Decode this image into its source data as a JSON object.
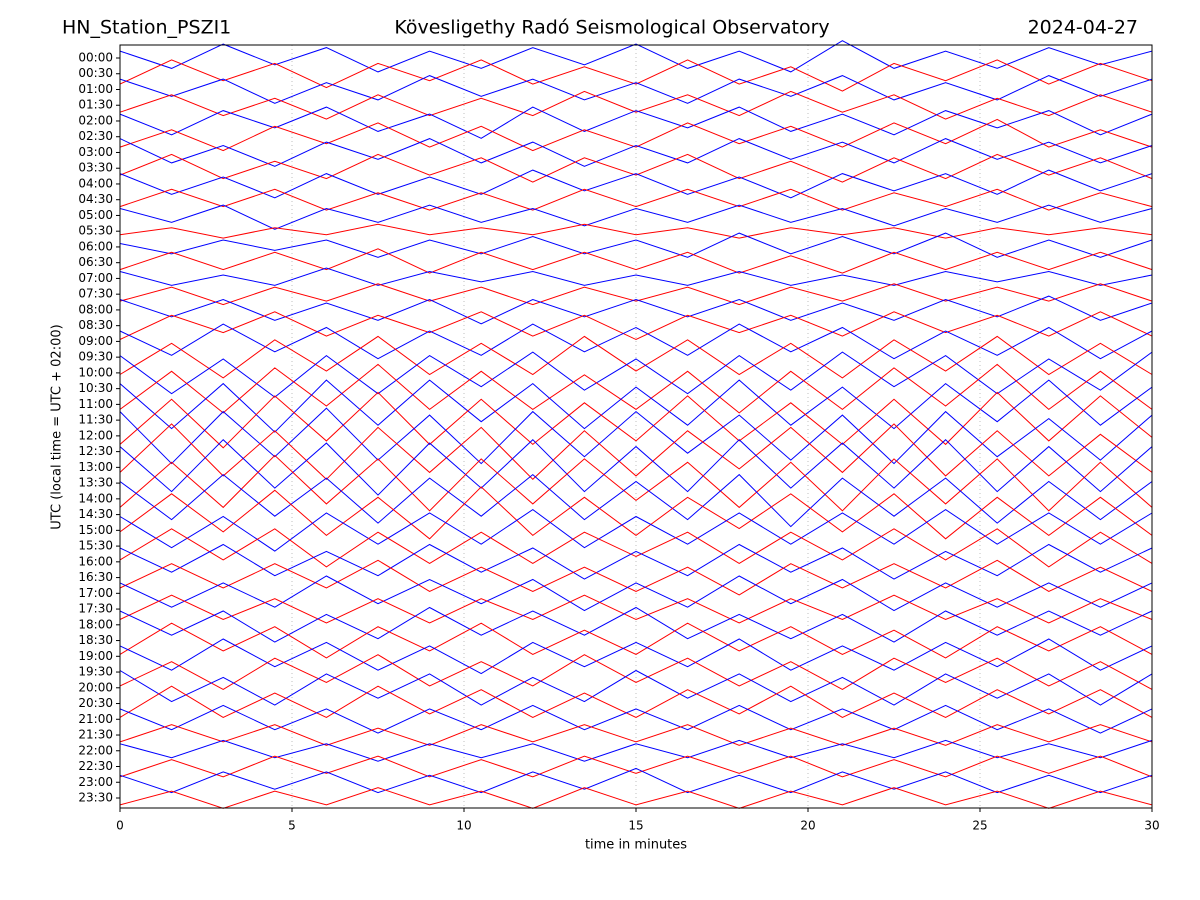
{
  "chart_data": {
    "type": "helicorder",
    "title_left": "HN_Station_PSZI1",
    "title": "Kövesligethy Radó Seismological Observatory",
    "title_right": "2024-04-27",
    "ylabel": "UTC (local time = UTC + 02:00)",
    "xlabel": "time in minutes",
    "xlim": [
      0,
      30
    ],
    "xticks": [
      0,
      5,
      10,
      15,
      20,
      25,
      30
    ],
    "grid": true,
    "trace_x": [
      0,
      1.5,
      3,
      4.5,
      6,
      7.5,
      9,
      10.5,
      12,
      13.5,
      15,
      16.5,
      18,
      19.5,
      21,
      22.5,
      24,
      25.5,
      27,
      28.5,
      30
    ],
    "series": [
      {
        "name": "00:00",
        "color": "#0000ff",
        "values": [
          2,
          -3,
          4,
          -2,
          3,
          -4,
          2,
          -3,
          3,
          -2,
          4,
          -3,
          2,
          -4,
          5,
          -3,
          2,
          -3,
          3,
          -2,
          2
        ]
      },
      {
        "name": "00:30",
        "color": "#ff0000",
        "values": [
          -3,
          4,
          -2,
          3,
          -4,
          3,
          -2,
          4,
          -3,
          2,
          -3,
          4,
          -3,
          2,
          -5,
          3,
          -2,
          4,
          -3,
          3,
          -2
        ]
      },
      {
        "name": "01:00",
        "color": "#0000ff",
        "values": [
          3,
          -2,
          3,
          -4,
          2,
          -3,
          4,
          -2,
          3,
          -3,
          2,
          -4,
          3,
          -2,
          4,
          -3,
          2,
          -3,
          4,
          -2,
          3
        ]
      },
      {
        "name": "01:30",
        "color": "#ff0000",
        "values": [
          -2,
          3,
          -3,
          2,
          -4,
          3,
          -3,
          2,
          -3,
          4,
          -2,
          3,
          -3,
          4,
          -2,
          3,
          -4,
          2,
          -3,
          3,
          -2
        ]
      },
      {
        "name": "02:00",
        "color": "#0000ff",
        "values": [
          2,
          -4,
          3,
          -2,
          4,
          -3,
          2,
          -5,
          4,
          -3,
          3,
          -2,
          4,
          -3,
          2,
          -4,
          3,
          -2,
          3,
          -4,
          2
        ]
      },
      {
        "name": "02:30",
        "color": "#ff0000",
        "values": [
          -3,
          2,
          -4,
          3,
          -2,
          4,
          -3,
          3,
          -4,
          2,
          -3,
          4,
          -2,
          3,
          -3,
          4,
          -2,
          5,
          -3,
          2,
          -3
        ]
      },
      {
        "name": "03:00",
        "color": "#0000ff",
        "values": [
          4,
          -3,
          2,
          -4,
          3,
          -2,
          4,
          -3,
          3,
          -4,
          2,
          -3,
          4,
          -2,
          3,
          -3,
          4,
          -2,
          3,
          -3,
          2
        ]
      },
      {
        "name": "03:30",
        "color": "#ff0000",
        "values": [
          -2,
          4,
          -3,
          2,
          -3,
          4,
          -2,
          3,
          -4,
          3,
          -2,
          4,
          -3,
          2,
          -4,
          3,
          -3,
          4,
          -2,
          3,
          -3
        ]
      },
      {
        "name": "04:00",
        "color": "#0000ff",
        "values": [
          3,
          -3,
          2,
          -4,
          3,
          -3,
          2,
          -3,
          4,
          -2,
          3,
          -3,
          2,
          -4,
          3,
          -2,
          3,
          -3,
          4,
          -2,
          3
        ]
      },
      {
        "name": "04:30",
        "color": "#ff0000",
        "values": [
          -2,
          3,
          -2,
          3,
          -3,
          2,
          -3,
          2,
          -3,
          3,
          -2,
          3,
          -2,
          3,
          -3,
          2,
          -2,
          3,
          -3,
          2,
          -2
        ]
      },
      {
        "name": "05:00",
        "color": "#0000ff",
        "values": [
          2,
          -2,
          3,
          -4,
          2,
          -2,
          3,
          -2,
          2,
          -3,
          2,
          -2,
          3,
          -2,
          2,
          -3,
          2,
          -2,
          3,
          -2,
          2
        ]
      },
      {
        "name": "05:30",
        "color": "#ff0000",
        "values": [
          -1,
          1,
          -2,
          1,
          -1,
          2,
          -1,
          1,
          -1,
          2,
          -1,
          1,
          -2,
          1,
          -1,
          1,
          -2,
          1,
          -1,
          1,
          -1
        ]
      },
      {
        "name": "06:00",
        "color": "#0000ff",
        "values": [
          1,
          -2,
          2,
          -1,
          2,
          -3,
          2,
          -2,
          3,
          -2,
          2,
          -3,
          4,
          -2,
          3,
          -2,
          4,
          -3,
          2,
          -3,
          2
        ]
      },
      {
        "name": "06:30",
        "color": "#ff0000",
        "values": [
          -2,
          3,
          -2,
          3,
          -2,
          4,
          -3,
          3,
          -2,
          3,
          -2,
          3,
          -3,
          2,
          -3,
          3,
          -2,
          3,
          -2,
          3,
          -2
        ]
      },
      {
        "name": "07:00",
        "color": "#0000ff",
        "values": [
          2,
          -2,
          1,
          -2,
          3,
          -2,
          2,
          -1,
          2,
          -2,
          1,
          -2,
          2,
          -2,
          1,
          -2,
          2,
          -1,
          2,
          -2,
          1
        ]
      },
      {
        "name": "07:30",
        "color": "#ff0000",
        "values": [
          -2,
          2,
          -3,
          2,
          -2,
          3,
          -2,
          2,
          -3,
          2,
          -2,
          2,
          -3,
          2,
          -2,
          3,
          -2,
          2,
          -2,
          3,
          -2
        ]
      },
      {
        "name": "08:00",
        "color": "#0000ff",
        "values": [
          3,
          -2,
          3,
          -3,
          2,
          -3,
          3,
          -4,
          3,
          -2,
          3,
          -2,
          3,
          -3,
          2,
          -3,
          3,
          -2,
          4,
          -3,
          2
        ]
      },
      {
        "name": "08:30",
        "color": "#ff0000",
        "values": [
          -4,
          3,
          -2,
          4,
          -3,
          3,
          -2,
          4,
          -3,
          3,
          -4,
          3,
          -2,
          3,
          -3,
          4,
          -2,
          3,
          -3,
          4,
          -3
        ]
      },
      {
        "name": "09:00",
        "color": "#0000ff",
        "values": [
          3,
          -4,
          5,
          -3,
          4,
          -5,
          3,
          -4,
          5,
          -3,
          4,
          -4,
          5,
          -3,
          4,
          -5,
          3,
          -4,
          4,
          -5,
          3
        ]
      },
      {
        "name": "09:30",
        "color": "#ff0000",
        "values": [
          -5,
          4,
          -6,
          5,
          -4,
          6,
          -5,
          4,
          -5,
          6,
          -4,
          5,
          -5,
          4,
          -6,
          5,
          -4,
          6,
          -5,
          4,
          -5
        ]
      },
      {
        "name": "10:00",
        "color": "#0000ff",
        "values": [
          5,
          -6,
          4,
          -7,
          5,
          -6,
          5,
          -4,
          6,
          -5,
          4,
          -6,
          5,
          -5,
          6,
          -4,
          5,
          -6,
          4,
          -5,
          6
        ]
      },
      {
        "name": "10:30",
        "color": "#ff0000",
        "values": [
          -6,
          5,
          -7,
          6,
          -5,
          7,
          -6,
          5,
          -6,
          4,
          -6,
          5,
          -7,
          5,
          -6,
          6,
          -5,
          7,
          -6,
          5,
          -6
        ]
      },
      {
        "name": "11:00",
        "color": "#0000ff",
        "values": [
          6,
          -7,
          6,
          -8,
          7,
          -6,
          7,
          -5,
          6,
          -7,
          5,
          -6,
          7,
          -6,
          5,
          -7,
          6,
          -5,
          7,
          -6,
          5
        ]
      },
      {
        "name": "11:30",
        "color": "#ff0000",
        "values": [
          -7,
          6,
          -8,
          7,
          -6,
          8,
          -7,
          6,
          -7,
          5,
          -6,
          7,
          -6,
          5,
          -7,
          6,
          -7,
          8,
          -6,
          7,
          -5
        ]
      },
      {
        "name": "12:00",
        "color": "#0000ff",
        "values": [
          7,
          -8,
          7,
          -6,
          8,
          -7,
          6,
          -8,
          7,
          -6,
          7,
          -5,
          6,
          -7,
          6,
          -8,
          7,
          -6,
          5,
          -7,
          6
        ]
      },
      {
        "name": "12:30",
        "color": "#ff0000",
        "values": [
          -6,
          8,
          -7,
          6,
          -8,
          7,
          -6,
          7,
          -8,
          6,
          -7,
          6,
          -5,
          7,
          -6,
          8,
          -7,
          6,
          -7,
          5,
          -6
        ]
      },
      {
        "name": "13:00",
        "color": "#0000ff",
        "values": [
          6,
          -7,
          8,
          -6,
          7,
          -8,
          7,
          -6,
          8,
          -7,
          6,
          -7,
          8,
          -6,
          7,
          -6,
          8,
          -7,
          6,
          -7,
          6
        ]
      },
      {
        "name": "13:30",
        "color": "#ff0000",
        "values": [
          -7,
          6,
          -7,
          8,
          -6,
          7,
          -8,
          7,
          -6,
          7,
          -5,
          6,
          -7,
          6,
          -8,
          7,
          -6,
          7,
          -8,
          6,
          -7
        ]
      },
      {
        "name": "14:00",
        "color": "#0000ff",
        "values": [
          5,
          -6,
          7,
          -5,
          6,
          -7,
          6,
          -5,
          7,
          -6,
          5,
          -6,
          7,
          -8,
          6,
          -5,
          6,
          -7,
          5,
          -6,
          5
        ]
      },
      {
        "name": "14:30",
        "color": "#ff0000",
        "values": [
          -5,
          6,
          -5,
          7,
          -6,
          5,
          -7,
          8,
          -6,
          5,
          -6,
          5,
          -4,
          6,
          -5,
          6,
          -7,
          5,
          -6,
          5,
          -6
        ]
      },
      {
        "name": "15:00",
        "color": "#0000ff",
        "values": [
          4,
          -5,
          4,
          -6,
          5,
          -4,
          5,
          -4,
          6,
          -5,
          4,
          -4,
          5,
          -4,
          5,
          -4,
          6,
          -4,
          5,
          -4,
          5
        ]
      },
      {
        "name": "15:30",
        "color": "#ff0000",
        "values": [
          -4,
          5,
          -4,
          5,
          -6,
          4,
          -5,
          4,
          -5,
          4,
          -3,
          4,
          -5,
          4,
          -4,
          5,
          -4,
          5,
          -6,
          4,
          -5
        ]
      },
      {
        "name": "16:00",
        "color": "#0000ff",
        "values": [
          4,
          -3,
          5,
          -4,
          3,
          -4,
          5,
          -3,
          4,
          -5,
          3,
          -4,
          5,
          -3,
          4,
          -5,
          3,
          -4,
          5,
          -3,
          4
        ]
      },
      {
        "name": "16:30",
        "color": "#ff0000",
        "values": [
          -3,
          4,
          -3,
          4,
          -3,
          5,
          -4,
          3,
          -4,
          3,
          -4,
          3,
          -5,
          4,
          -3,
          4,
          -3,
          5,
          -4,
          3,
          -4
        ]
      },
      {
        "name": "17:00",
        "color": "#0000ff",
        "values": [
          3,
          -4,
          3,
          -4,
          5,
          -3,
          4,
          -3,
          4,
          -5,
          3,
          -4,
          5,
          -3,
          4,
          -5,
          3,
          -4,
          3,
          -4,
          3
        ]
      },
      {
        "name": "17:30",
        "color": "#ff0000",
        "values": [
          -3,
          4,
          -3,
          3,
          -4,
          3,
          -4,
          3,
          -3,
          4,
          -3,
          3,
          -4,
          3,
          -3,
          4,
          -3,
          3,
          -4,
          3,
          -3
        ]
      },
      {
        "name": "18:00",
        "color": "#0000ff",
        "values": [
          4,
          -3,
          4,
          -5,
          3,
          -4,
          5,
          -3,
          4,
          -3,
          5,
          -4,
          3,
          -4,
          3,
          -5,
          4,
          -3,
          4,
          -3,
          4
        ]
      },
      {
        "name": "18:30",
        "color": "#ff0000",
        "values": [
          -4,
          5,
          -3,
          4,
          -5,
          4,
          -3,
          5,
          -4,
          3,
          -4,
          5,
          -3,
          4,
          -4,
          3,
          -5,
          4,
          -3,
          4,
          -4
        ]
      },
      {
        "name": "19:00",
        "color": "#0000ff",
        "values": [
          3,
          -4,
          5,
          -3,
          4,
          -4,
          3,
          -5,
          4,
          -3,
          4,
          -3,
          5,
          -4,
          3,
          -4,
          4,
          -3,
          5,
          -4,
          3
        ]
      },
      {
        "name": "19:30",
        "color": "#ff0000",
        "values": [
          -4,
          3,
          -5,
          4,
          -3,
          5,
          -4,
          3,
          -4,
          5,
          -3,
          4,
          -4,
          3,
          -5,
          4,
          -3,
          4,
          -4,
          3,
          -5
        ]
      },
      {
        "name": "20:00",
        "color": "#0000ff",
        "values": [
          5,
          -4,
          3,
          -5,
          4,
          -3,
          4,
          -5,
          3,
          -4,
          5,
          -3,
          4,
          -4,
          3,
          -5,
          4,
          -3,
          4,
          -5,
          4
        ]
      },
      {
        "name": "20:30",
        "color": "#ff0000",
        "values": [
          -4,
          5,
          -4,
          3,
          -4,
          5,
          -3,
          4,
          -4,
          3,
          -4,
          4,
          -3,
          5,
          -4,
          3,
          -4,
          4,
          -3,
          4,
          -4
        ]
      },
      {
        "name": "21:00",
        "color": "#0000ff",
        "values": [
          3,
          -3,
          4,
          -3,
          3,
          -4,
          3,
          -3,
          4,
          -3,
          3,
          -3,
          4,
          -3,
          3,
          -3,
          4,
          -3,
          3,
          -4,
          3
        ]
      },
      {
        "name": "21:30",
        "color": "#ff0000",
        "values": [
          -2,
          3,
          -2,
          3,
          -3,
          2,
          -3,
          3,
          -2,
          3,
          -2,
          3,
          -3,
          2,
          -3,
          2,
          -3,
          3,
          -2,
          3,
          -2
        ]
      },
      {
        "name": "22:00",
        "color": "#0000ff",
        "values": [
          2,
          -2,
          3,
          -2,
          2,
          -3,
          2,
          -2,
          2,
          -3,
          2,
          -2,
          3,
          -2,
          2,
          -2,
          3,
          -2,
          2,
          -2,
          3
        ]
      },
      {
        "name": "22:30",
        "color": "#ff0000",
        "values": [
          -3,
          2,
          -3,
          3,
          -2,
          3,
          -3,
          2,
          -3,
          3,
          -2,
          3,
          -2,
          3,
          -3,
          2,
          -3,
          3,
          -2,
          3,
          -3
        ]
      },
      {
        "name": "23:00",
        "color": "#0000ff",
        "values": [
          2,
          -3,
          3,
          -2,
          3,
          -3,
          2,
          -3,
          3,
          -2,
          4,
          -3,
          2,
          -3,
          3,
          -2,
          3,
          -3,
          2,
          -3,
          2
        ]
      },
      {
        "name": "23:30",
        "color": "#ff0000",
        "values": [
          -2,
          2,
          -3,
          2,
          -2,
          3,
          -2,
          2,
          -3,
          3,
          -2,
          2,
          -3,
          2,
          -2,
          3,
          -2,
          2,
          -3,
          2,
          -2
        ]
      }
    ]
  }
}
